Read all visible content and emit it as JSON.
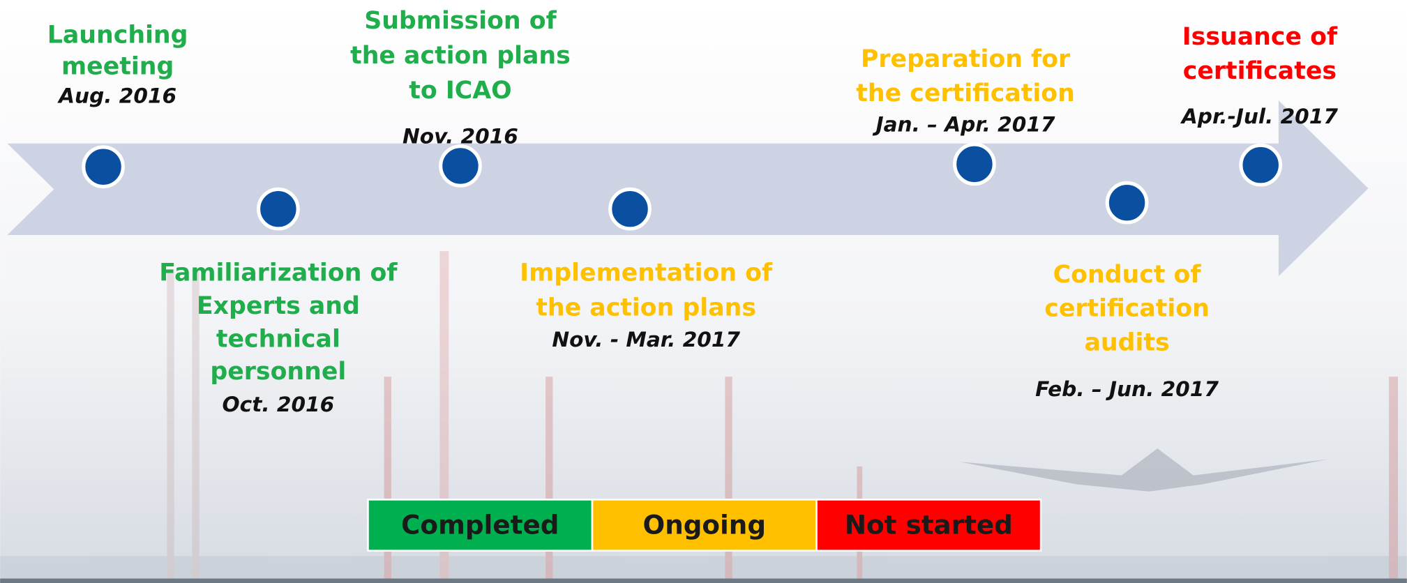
{
  "milestones": [
    {
      "title": [
        "Launching",
        "meeting"
      ],
      "date": "Aug. 2016",
      "color": "#1fae4b"
    },
    {
      "title": [
        "Familiarization of",
        "Experts and",
        "technical",
        "personnel"
      ],
      "date": "Oct. 2016",
      "color": "#1fae4b"
    },
    {
      "title": [
        "Submission of",
        "the action plans",
        "to ICAO"
      ],
      "date": "Nov. 2016",
      "color": "#1fae4b"
    },
    {
      "title": [
        "Implementation of",
        "the action plans"
      ],
      "date": "Nov. - Mar. 2017",
      "color": "#ffc000"
    },
    {
      "title": [
        "Preparation for",
        "the certification"
      ],
      "date": "Jan. – Apr. 2017",
      "color": "#ffc000"
    },
    {
      "title": [
        "Conduct of",
        "certification",
        "audits"
      ],
      "date": "Feb. – Jun. 2017",
      "color": "#ffc000"
    },
    {
      "title": [
        "Issuance of",
        "certificates"
      ],
      "date": "Apr.-Jul. 2017",
      "color": "#ff0000"
    }
  ],
  "legend": [
    {
      "label": "Completed",
      "color": "#00b050"
    },
    {
      "label": "Ongoing",
      "color": "#ffc000"
    },
    {
      "label": "Not started",
      "color": "#ff0000"
    }
  ]
}
